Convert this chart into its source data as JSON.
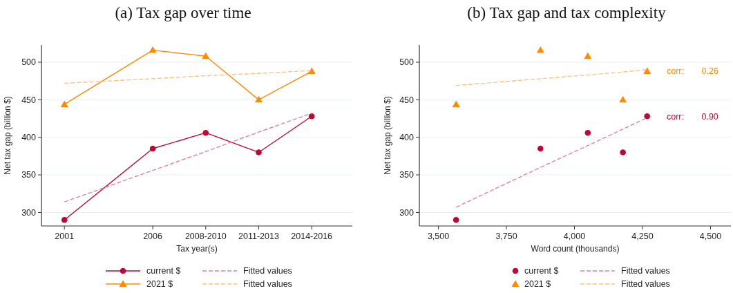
{
  "chart_data": [
    {
      "type": "line",
      "title": "(a) Tax gap over time",
      "xlabel": "Tax year(s)",
      "ylabel": "Net tax gap (billion $)",
      "x": [
        2001,
        2006,
        2009,
        2012,
        2015
      ],
      "xlim": [
        1999.7,
        2017.3
      ],
      "xticks": [
        2001,
        2006,
        {
          "value": 2009,
          "label": "2008-2010"
        },
        {
          "value": 2012,
          "label": "2011-2013"
        },
        {
          "value": 2015,
          "label": "2014-2016"
        }
      ],
      "ylim": [
        282,
        523
      ],
      "yticks": [
        300,
        350,
        400,
        450,
        500
      ],
      "grid": "y",
      "legend": "bottom",
      "series": [
        {
          "name": "current $",
          "color": "#c10534",
          "values": [
            290,
            385,
            406,
            380,
            428
          ],
          "marker": "circle",
          "line_style": "solid"
        },
        {
          "name": "2021 $",
          "color": "#ff8a00",
          "values": [
            444,
            516,
            508,
            450,
            488
          ],
          "marker": "triangle",
          "line_style": "solid"
        },
        {
          "name": "Fitted values",
          "color": "#e5809a",
          "values": [
            314,
            356,
            381,
            407,
            432
          ],
          "marker": "none",
          "line_style": "dashed"
        },
        {
          "name": "Fitted values",
          "color": "#ffc080",
          "values": [
            472,
            478,
            482,
            485,
            489
          ],
          "marker": "none",
          "line_style": "dashed"
        }
      ]
    },
    {
      "type": "scatter",
      "title": "(b) Tax gap and tax complexity",
      "xlabel": "Word count (thousands)",
      "ylabel": "Net tax gap (billion $)",
      "x": [
        3565,
        3875,
        4049,
        4178,
        4267
      ],
      "xlim": [
        3430,
        4575
      ],
      "xticks": [
        {
          "value": 3500,
          "label": "3,500"
        },
        {
          "value": 3750,
          "label": "3,750"
        },
        {
          "value": 4000,
          "label": "4,000"
        },
        {
          "value": 4250,
          "label": "4,250"
        },
        {
          "value": 4500,
          "label": "4,500"
        }
      ],
      "ylim": [
        282,
        523
      ],
      "yticks": [
        300,
        350,
        400,
        450,
        500
      ],
      "grid": "y",
      "legend": "bottom",
      "annotations": [
        "corr: 0.26",
        "corr: 0.90"
      ],
      "series": [
        {
          "name": "current $",
          "color": "#c10534",
          "values": [
            290,
            385,
            406,
            380,
            428
          ],
          "marker": "circle"
        },
        {
          "name": "2021 $",
          "color": "#ff8a00",
          "values": [
            444,
            516,
            508,
            450,
            488
          ],
          "marker": "triangle"
        },
        {
          "name": "Fitted values",
          "type": "line",
          "color": "#e5809a",
          "values": [
            307,
            360,
            389,
            411,
            426
          ],
          "marker": "none",
          "line_style": "dashed"
        },
        {
          "name": "Fitted values",
          "type": "line",
          "color": "#ffc080",
          "values": [
            469,
            478,
            483,
            487,
            490
          ],
          "marker": "none",
          "line_style": "dashed"
        }
      ]
    }
  ]
}
